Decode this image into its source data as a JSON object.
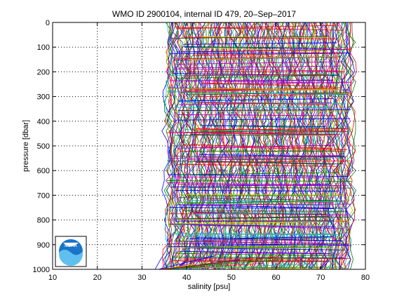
{
  "chart_data": {
    "type": "line",
    "title": "WMO ID 2900104, internal ID 479, 20–Sep–2017",
    "xlabel": "salinity [psu]",
    "ylabel": "pressure [dbar]",
    "xlim": [
      10,
      80
    ],
    "ylim": [
      1000,
      0
    ],
    "y_reversed": true,
    "x_ticks": [
      10,
      20,
      30,
      40,
      50,
      60,
      70,
      80
    ],
    "y_ticks": [
      0,
      100,
      200,
      300,
      400,
      500,
      600,
      700,
      800,
      900,
      1000
    ],
    "grid": true,
    "legend": "none",
    "series_colors": [
      "#0000ff",
      "#008000",
      "#ff0000",
      "#00bfbf",
      "#bf00bf",
      "#bfbf00",
      "#404040"
    ],
    "profile_band": {
      "salinity_min": 35.5,
      "salinity_max": 77
    },
    "logo": {
      "name": "noaa-logo-icon",
      "text": "NOAA"
    }
  }
}
